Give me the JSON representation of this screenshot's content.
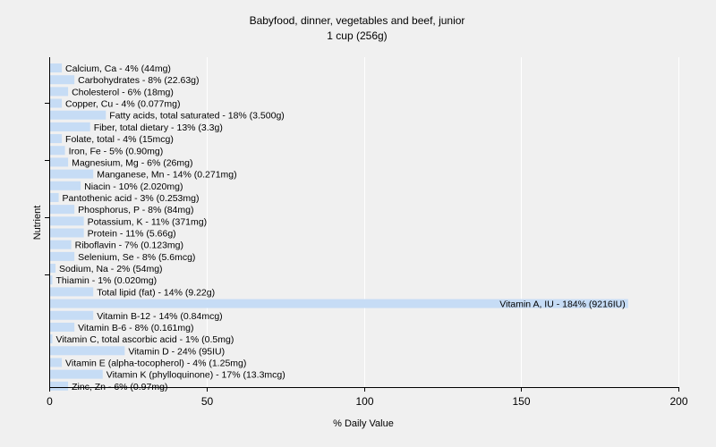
{
  "chart_data": {
    "type": "bar",
    "orientation": "horizontal",
    "title": "Babyfood, dinner, vegetables and beef, junior",
    "subtitle": "1 cup (256g)",
    "xlabel": "% Daily Value",
    "ylabel": "Nutrient",
    "xlim": [
      0,
      200
    ],
    "xticks": [
      0,
      50,
      100,
      150,
      200
    ],
    "grid": true,
    "bar_color": "#c6dcf5",
    "background_color": "#f0f0f0",
    "categories": [
      "Calcium, Ca",
      "Carbohydrates",
      "Cholesterol",
      "Copper, Cu",
      "Fatty acids, total saturated",
      "Fiber, total dietary",
      "Folate, total",
      "Iron, Fe",
      "Magnesium, Mg",
      "Manganese, Mn",
      "Niacin",
      "Pantothenic acid",
      "Phosphorus, P",
      "Potassium, K",
      "Protein",
      "Riboflavin",
      "Selenium, Se",
      "Sodium, Na",
      "Thiamin",
      "Total lipid (fat)",
      "Vitamin A, IU",
      "Vitamin B-12",
      "Vitamin B-6",
      "Vitamin C, total ascorbic acid",
      "Vitamin D",
      "Vitamin E (alpha-tocopherol)",
      "Vitamin K (phylloquinone)",
      "Zinc, Zn"
    ],
    "values": [
      4,
      8,
      6,
      4,
      18,
      13,
      4,
      5,
      6,
      14,
      10,
      3,
      8,
      11,
      11,
      7,
      8,
      2,
      1,
      14,
      184,
      14,
      8,
      1,
      24,
      4,
      17,
      6
    ],
    "labels": [
      "Calcium, Ca - 4% (44mg)",
      "Carbohydrates - 8% (22.63g)",
      "Cholesterol - 6% (18mg)",
      "Copper, Cu - 4% (0.077mg)",
      "Fatty acids, total saturated - 18% (3.500g)",
      "Fiber, total dietary - 13% (3.3g)",
      "Folate, total - 4% (15mcg)",
      "Iron, Fe - 5% (0.90mg)",
      "Magnesium, Mg - 6% (26mg)",
      "Manganese, Mn - 14% (0.271mg)",
      "Niacin - 10% (2.020mg)",
      "Pantothenic acid - 3% (0.253mg)",
      "Phosphorus, P - 8% (84mg)",
      "Potassium, K - 11% (371mg)",
      "Protein - 11% (5.66g)",
      "Riboflavin - 7% (0.123mg)",
      "Selenium, Se - 8% (5.6mcg)",
      "Sodium, Na - 2% (54mg)",
      "Thiamin - 1% (0.020mg)",
      "Total lipid (fat) - 14% (9.22g)",
      "Vitamin A, IU - 184% (9216IU)",
      "Vitamin B-12 - 14% (0.84mcg)",
      "Vitamin B-6 - 8% (0.161mg)",
      "Vitamin C, total ascorbic acid - 1% (0.5mg)",
      "Vitamin D - 24% (95IU)",
      "Vitamin E (alpha-tocopherol) - 4% (1.25mg)",
      "Vitamin K (phylloquinone) - 17% (13.3mcg)",
      "Zinc, Zn - 6% (0.97mg)"
    ]
  }
}
